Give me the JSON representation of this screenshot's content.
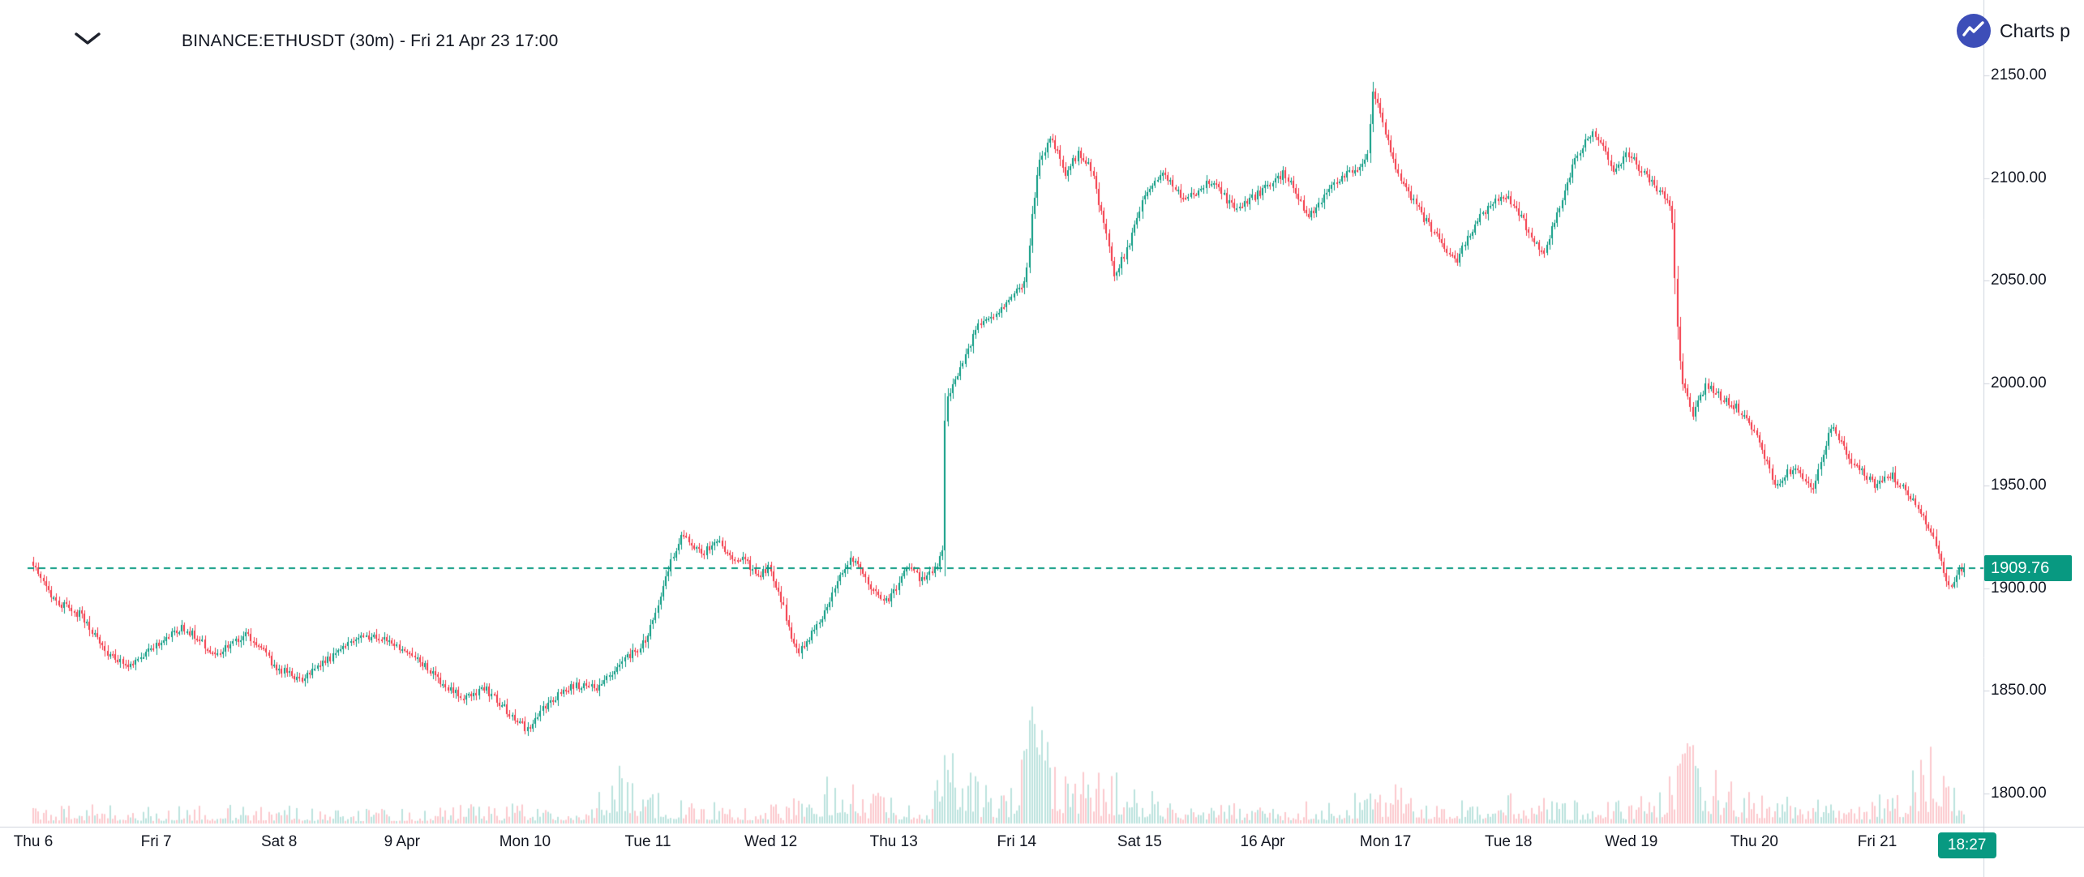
{
  "header": {
    "symbol_title": "BINANCE:ETHUSDT (30m) - Fri 21 Apr 23 17:00"
  },
  "attribution": {
    "label": "Charts p"
  },
  "colors": {
    "background": "#ffffff",
    "up": "#089981",
    "down": "#f23645",
    "up_volume": "rgba(8,153,129,0.27)",
    "down_volume": "rgba(242,54,69,0.27)",
    "last_price_line": "#089981",
    "badge_background": "#089981",
    "badge_text": "#ffffff",
    "axis_text": "#131722",
    "axis_line": "#cfd3dc",
    "logo": "#3d4eb8"
  },
  "chart_data": {
    "type": "candlestick",
    "title": "BINANCE:ETHUSDT (30m) - Fri 21 Apr 23 17:00",
    "symbol": "BINANCE:ETHUSDT",
    "interval": "30m",
    "grid": false,
    "legend_position": "none",
    "last_price": 1909.76,
    "last_price_label": "1909.76",
    "last_time_label": "18:27",
    "days_span": 15.73,
    "bars_per_day": 48,
    "y_axis": {
      "ticks": [
        2150,
        2100,
        2050,
        2000,
        1950,
        1900,
        1850,
        1800
      ],
      "labels": [
        "2150.00",
        "2100.00",
        "2050.00",
        "2000.00",
        "1950.00",
        "1900.00",
        "1850.00",
        "1800.00"
      ],
      "ylim": [
        1795,
        2158
      ]
    },
    "x_axis": {
      "labels": [
        {
          "text": "Thu 6",
          "day": 0
        },
        {
          "text": "Fri 7",
          "day": 1
        },
        {
          "text": "Sat 8",
          "day": 2
        },
        {
          "text": "9 Apr",
          "day": 3
        },
        {
          "text": "Mon 10",
          "day": 4
        },
        {
          "text": "Tue 11",
          "day": 5
        },
        {
          "text": "Wed 12",
          "day": 6
        },
        {
          "text": "Thu 13",
          "day": 7
        },
        {
          "text": "Fri 14",
          "day": 8
        },
        {
          "text": "Sat 15",
          "day": 9
        },
        {
          "text": "16 Apr",
          "day": 10
        },
        {
          "text": "Mon 17",
          "day": 11
        },
        {
          "text": "Tue 18",
          "day": 12
        },
        {
          "text": "Wed 19",
          "day": 13
        },
        {
          "text": "Thu 20",
          "day": 14
        },
        {
          "text": "Fri 21",
          "day": 15
        }
      ]
    },
    "price_keypoints": [
      [
        0,
        1913
      ],
      [
        0.1,
        1904
      ],
      [
        0.2,
        1894
      ],
      [
        0.4,
        1887
      ],
      [
        0.6,
        1870
      ],
      [
        0.8,
        1861
      ],
      [
        1.0,
        1872
      ],
      [
        1.25,
        1881
      ],
      [
        1.5,
        1868
      ],
      [
        1.75,
        1878
      ],
      [
        1.9,
        1869
      ],
      [
        2.0,
        1861
      ],
      [
        2.2,
        1856
      ],
      [
        2.45,
        1867
      ],
      [
        2.7,
        1878
      ],
      [
        2.9,
        1874
      ],
      [
        3.1,
        1869
      ],
      [
        3.3,
        1856
      ],
      [
        3.5,
        1847
      ],
      [
        3.7,
        1851
      ],
      [
        3.9,
        1839
      ],
      [
        4.05,
        1830
      ],
      [
        4.2,
        1844
      ],
      [
        4.4,
        1853
      ],
      [
        4.6,
        1851
      ],
      [
        4.8,
        1863
      ],
      [
        5.0,
        1874
      ],
      [
        5.1,
        1892
      ],
      [
        5.2,
        1912
      ],
      [
        5.3,
        1928
      ],
      [
        5.45,
        1917
      ],
      [
        5.6,
        1923
      ],
      [
        5.72,
        1912
      ],
      [
        5.8,
        1916
      ],
      [
        5.9,
        1906
      ],
      [
        6.0,
        1910
      ],
      [
        6.1,
        1896
      ],
      [
        6.22,
        1869
      ],
      [
        6.3,
        1872
      ],
      [
        6.45,
        1888
      ],
      [
        6.6,
        1908
      ],
      [
        6.7,
        1916
      ],
      [
        6.8,
        1903
      ],
      [
        6.95,
        1893
      ],
      [
        7.05,
        1900
      ],
      [
        7.15,
        1912
      ],
      [
        7.25,
        1904
      ],
      [
        7.35,
        1910
      ],
      [
        7.42,
        1917
      ],
      [
        7.44,
        1993
      ],
      [
        7.55,
        2004
      ],
      [
        7.7,
        2028
      ],
      [
        7.85,
        2034
      ],
      [
        7.95,
        2040
      ],
      [
        8.05,
        2046
      ],
      [
        8.1,
        2052
      ],
      [
        8.14,
        2078
      ],
      [
        8.2,
        2106
      ],
      [
        8.3,
        2120
      ],
      [
        8.42,
        2102
      ],
      [
        8.52,
        2112
      ],
      [
        8.62,
        2106
      ],
      [
        8.72,
        2080
      ],
      [
        8.82,
        2052
      ],
      [
        8.95,
        2070
      ],
      [
        9.05,
        2090
      ],
      [
        9.2,
        2103
      ],
      [
        9.4,
        2089
      ],
      [
        9.6,
        2099
      ],
      [
        9.8,
        2084
      ],
      [
        10.0,
        2093
      ],
      [
        10.2,
        2103
      ],
      [
        10.4,
        2081
      ],
      [
        10.6,
        2097
      ],
      [
        10.8,
        2106
      ],
      [
        10.88,
        2112
      ],
      [
        10.92,
        2144
      ],
      [
        11.0,
        2125
      ],
      [
        11.1,
        2105
      ],
      [
        11.25,
        2088
      ],
      [
        11.45,
        2070
      ],
      [
        11.6,
        2060
      ],
      [
        11.75,
        2078
      ],
      [
        11.9,
        2088
      ],
      [
        12.0,
        2092
      ],
      [
        12.15,
        2078
      ],
      [
        12.3,
        2063
      ],
      [
        12.45,
        2088
      ],
      [
        12.58,
        2112
      ],
      [
        12.72,
        2122
      ],
      [
        12.88,
        2104
      ],
      [
        13.0,
        2112
      ],
      [
        13.15,
        2100
      ],
      [
        13.3,
        2090
      ],
      [
        13.35,
        2082
      ],
      [
        13.39,
        2030
      ],
      [
        13.43,
        2002
      ],
      [
        13.52,
        1985
      ],
      [
        13.63,
        1999
      ],
      [
        13.76,
        1993
      ],
      [
        13.9,
        1987
      ],
      [
        14.05,
        1972
      ],
      [
        14.2,
        1950
      ],
      [
        14.35,
        1960
      ],
      [
        14.5,
        1948
      ],
      [
        14.65,
        1980
      ],
      [
        14.8,
        1963
      ],
      [
        15.0,
        1950
      ],
      [
        15.15,
        1955
      ],
      [
        15.3,
        1943
      ],
      [
        15.45,
        1930
      ],
      [
        15.55,
        1910
      ],
      [
        15.62,
        1899
      ],
      [
        15.68,
        1908
      ],
      [
        15.73,
        1909.76
      ]
    ],
    "volume_keypoints": [
      [
        0,
        0.1
      ],
      [
        0.5,
        0.12
      ],
      [
        1,
        0.1
      ],
      [
        1.5,
        0.11
      ],
      [
        2,
        0.12
      ],
      [
        2.5,
        0.09
      ],
      [
        3,
        0.1
      ],
      [
        3.5,
        0.12
      ],
      [
        4,
        0.12
      ],
      [
        4.5,
        0.12
      ],
      [
        4.7,
        0.42
      ],
      [
        4.9,
        0.28
      ],
      [
        5.1,
        0.2
      ],
      [
        5.4,
        0.15
      ],
      [
        5.8,
        0.13
      ],
      [
        6.1,
        0.12
      ],
      [
        6.4,
        0.25
      ],
      [
        6.6,
        0.42
      ],
      [
        6.8,
        0.2
      ],
      [
        7.1,
        0.15
      ],
      [
        7.3,
        0.14
      ],
      [
        7.44,
        0.58
      ],
      [
        7.55,
        0.36
      ],
      [
        7.8,
        0.2
      ],
      [
        8.0,
        0.26
      ],
      [
        8.15,
        0.97
      ],
      [
        8.3,
        0.44
      ],
      [
        8.5,
        0.36
      ],
      [
        8.7,
        0.3
      ],
      [
        8.9,
        0.33
      ],
      [
        9.1,
        0.2
      ],
      [
        9.4,
        0.14
      ],
      [
        9.8,
        0.12
      ],
      [
        10.2,
        0.13
      ],
      [
        10.6,
        0.14
      ],
      [
        10.9,
        0.26
      ],
      [
        11.1,
        0.28
      ],
      [
        11.4,
        0.16
      ],
      [
        11.8,
        0.13
      ],
      [
        12.1,
        0.2
      ],
      [
        12.4,
        0.13
      ],
      [
        12.7,
        0.16
      ],
      [
        13.0,
        0.13
      ],
      [
        13.3,
        0.28
      ],
      [
        13.45,
        0.8
      ],
      [
        13.6,
        0.38
      ],
      [
        13.9,
        0.22
      ],
      [
        14.2,
        0.22
      ],
      [
        14.5,
        0.16
      ],
      [
        14.9,
        0.13
      ],
      [
        15.2,
        0.25
      ],
      [
        15.45,
        0.48
      ],
      [
        15.6,
        0.3
      ],
      [
        15.73,
        0.22
      ]
    ]
  }
}
